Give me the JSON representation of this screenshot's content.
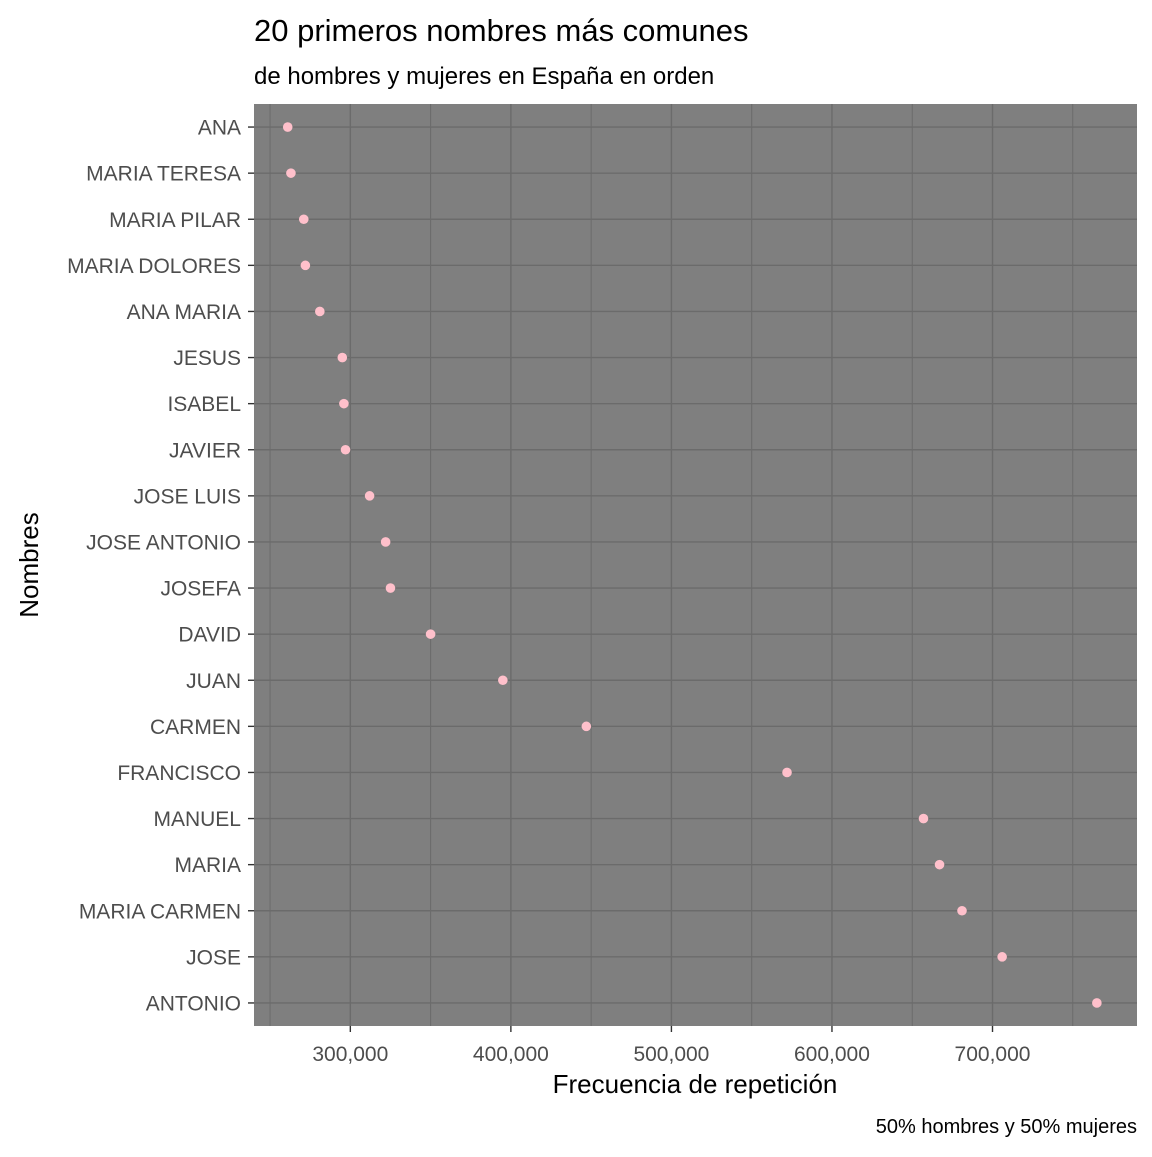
{
  "chart_data": {
    "type": "scatter",
    "title": "20 primeros nombres más comunes",
    "subtitle": "de hombres y mujeres en España en orden",
    "xlabel": "Frecuencia de repetición",
    "ylabel": "Nombres",
    "caption": "50% hombres y 50% mujeres",
    "xlim": [
      240000,
      790000
    ],
    "x_ticks": [
      300000,
      400000,
      500000,
      600000,
      700000
    ],
    "x_tick_labels": [
      "300,000",
      "400,000",
      "500,000",
      "600,000",
      "700,000"
    ],
    "grid": true,
    "panel_color": "#7f7f7f",
    "grid_color": "#6b6b6b",
    "point_color": "#ffc0cb",
    "categories": [
      "ANA",
      "MARIA TERESA",
      "MARIA PILAR",
      "MARIA DOLORES",
      "ANA MARIA",
      "JESUS",
      "ISABEL",
      "JAVIER",
      "JOSE LUIS",
      "JOSE ANTONIO",
      "JOSEFA",
      "DAVID",
      "JUAN",
      "CARMEN",
      "FRANCISCO",
      "MANUEL",
      "MARIA",
      "MARIA CARMEN",
      "JOSE",
      "ANTONIO"
    ],
    "values": [
      261000,
      263000,
      271000,
      272000,
      281000,
      295000,
      296000,
      297000,
      312000,
      322000,
      325000,
      350000,
      395000,
      447000,
      572000,
      657000,
      667000,
      681000,
      706000,
      765000
    ]
  }
}
